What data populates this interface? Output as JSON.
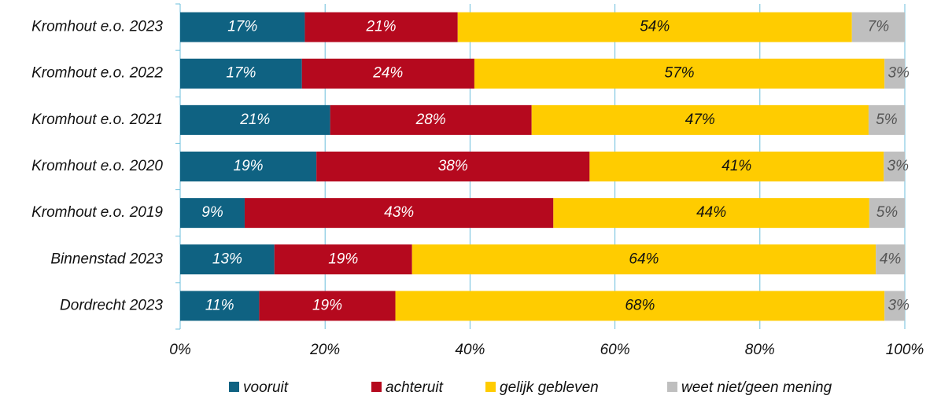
{
  "chart_data": {
    "type": "stacked_barh",
    "categories": [
      "Kromhout e.o. 2023",
      "Kromhout e.o. 2022",
      "Kromhout e.o. 2021",
      "Kromhout e.o. 2020",
      "Kromhout e.o. 2019",
      "Binnenstad 2023",
      "Dordrecht 2023"
    ],
    "series": [
      {
        "name": "vooruit",
        "color": "#0f6282",
        "values": [
          17.2,
          16.8,
          20.7,
          18.8,
          8.9,
          13.0,
          10.9
        ],
        "value_labels": [
          "17%",
          "17%",
          "21%",
          "19%",
          "9%",
          "13%",
          "11%"
        ]
      },
      {
        "name": "achteruit",
        "color": "#b5091e",
        "values": [
          21.1,
          23.8,
          27.8,
          37.7,
          42.6,
          19.0,
          18.8
        ],
        "value_labels": [
          "21%",
          "24%",
          "28%",
          "38%",
          "43%",
          "19%",
          "19%"
        ]
      },
      {
        "name": "gelijk gebleven",
        "color": "#ffcc00",
        "values": [
          54.4,
          56.6,
          46.5,
          40.6,
          43.6,
          64.0,
          67.5
        ],
        "value_labels": [
          "54%",
          "57%",
          "47%",
          "41%",
          "44%",
          "64%",
          "68%"
        ]
      },
      {
        "name": "weet niet/geen mening",
        "color": "#bfbfbf",
        "values": [
          7.3,
          2.8,
          5.0,
          2.9,
          4.9,
          4.0,
          2.8
        ],
        "value_labels": [
          "7%",
          "3%",
          "5%",
          "3%",
          "5%",
          "4%",
          "3%"
        ]
      }
    ],
    "xlim": [
      0,
      100
    ],
    "xticks": [
      {
        "value": 0,
        "label": "0%"
      },
      {
        "value": 20,
        "label": "20%"
      },
      {
        "value": 40,
        "label": "40%"
      },
      {
        "value": 60,
        "label": "60%"
      },
      {
        "value": 80,
        "label": "80%"
      },
      {
        "value": 100,
        "label": "100%"
      }
    ],
    "grid": true,
    "legend": "bottom"
  }
}
